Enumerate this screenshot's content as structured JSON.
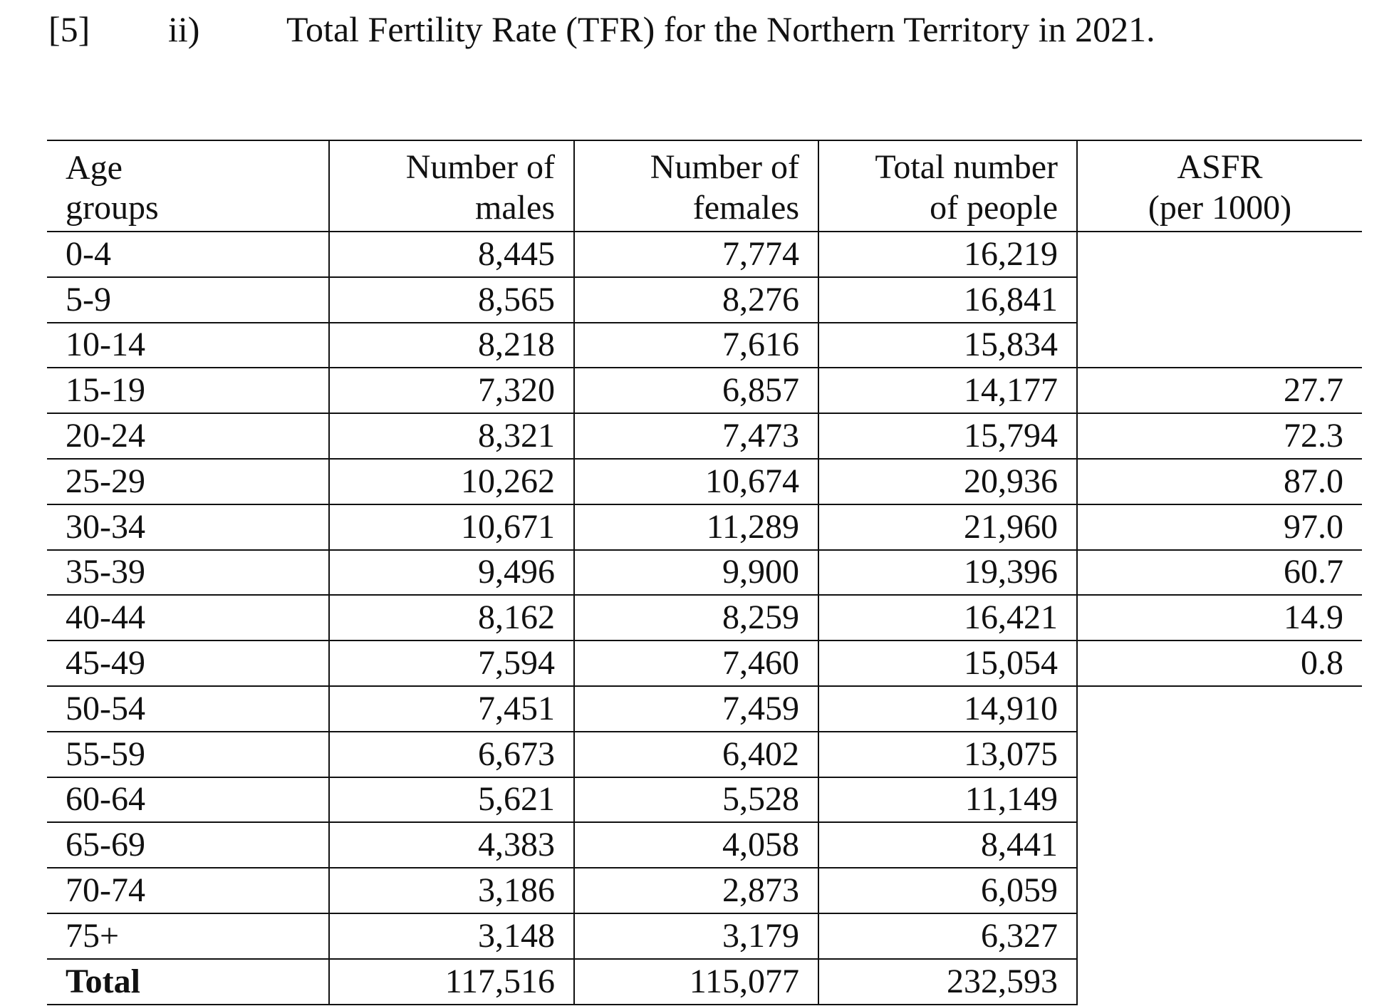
{
  "heading": {
    "marks": "[5]",
    "part": "ii)",
    "title": "Total Fertility Rate (TFR) for the Northern Territory in 2021."
  },
  "table": {
    "headers": {
      "age_line1": "Age",
      "age_line2": "groups",
      "males_line1": "Number of",
      "males_line2": "males",
      "females_line1": "Number of",
      "females_line2": "females",
      "total_line1": "Total number",
      "total_line2": "of people",
      "asfr_line1": "ASFR",
      "asfr_line2": "(per 1000)"
    },
    "rows": [
      {
        "age": "0-4",
        "males": "8,445",
        "females": "7,774",
        "total": "16,219",
        "asfr": ""
      },
      {
        "age": "5-9",
        "males": "8,565",
        "females": "8,276",
        "total": "16,841",
        "asfr": ""
      },
      {
        "age": "10-14",
        "males": "8,218",
        "females": "7,616",
        "total": "15,834",
        "asfr": ""
      },
      {
        "age": "15-19",
        "males": "7,320",
        "females": "6,857",
        "total": "14,177",
        "asfr": "27.7"
      },
      {
        "age": "20-24",
        "males": "8,321",
        "females": "7,473",
        "total": "15,794",
        "asfr": "72.3"
      },
      {
        "age": "25-29",
        "males": "10,262",
        "females": "10,674",
        "total": "20,936",
        "asfr": "87.0"
      },
      {
        "age": "30-34",
        "males": "10,671",
        "females": "11,289",
        "total": "21,960",
        "asfr": "97.0"
      },
      {
        "age": "35-39",
        "males": "9,496",
        "females": "9,900",
        "total": "19,396",
        "asfr": "60.7"
      },
      {
        "age": "40-44",
        "males": "8,162",
        "females": "8,259",
        "total": "16,421",
        "asfr": "14.9"
      },
      {
        "age": "45-49",
        "males": "7,594",
        "females": "7,460",
        "total": "15,054",
        "asfr": "0.8"
      },
      {
        "age": "50-54",
        "males": "7,451",
        "females": "7,459",
        "total": "14,910",
        "asfr": ""
      },
      {
        "age": "55-59",
        "males": "6,673",
        "females": "6,402",
        "total": "13,075",
        "asfr": ""
      },
      {
        "age": "60-64",
        "males": "5,621",
        "females": "5,528",
        "total": "11,149",
        "asfr": ""
      },
      {
        "age": "65-69",
        "males": "4,383",
        "females": "4,058",
        "total": "8,441",
        "asfr": ""
      },
      {
        "age": "70-74",
        "males": "3,186",
        "females": "2,873",
        "total": "6,059",
        "asfr": ""
      },
      {
        "age": "75+",
        "males": "3,148",
        "females": "3,179",
        "total": "6,327",
        "asfr": ""
      },
      {
        "age": "Total",
        "males": "117,516",
        "females": "115,077",
        "total": "232,593",
        "asfr": ""
      }
    ]
  }
}
